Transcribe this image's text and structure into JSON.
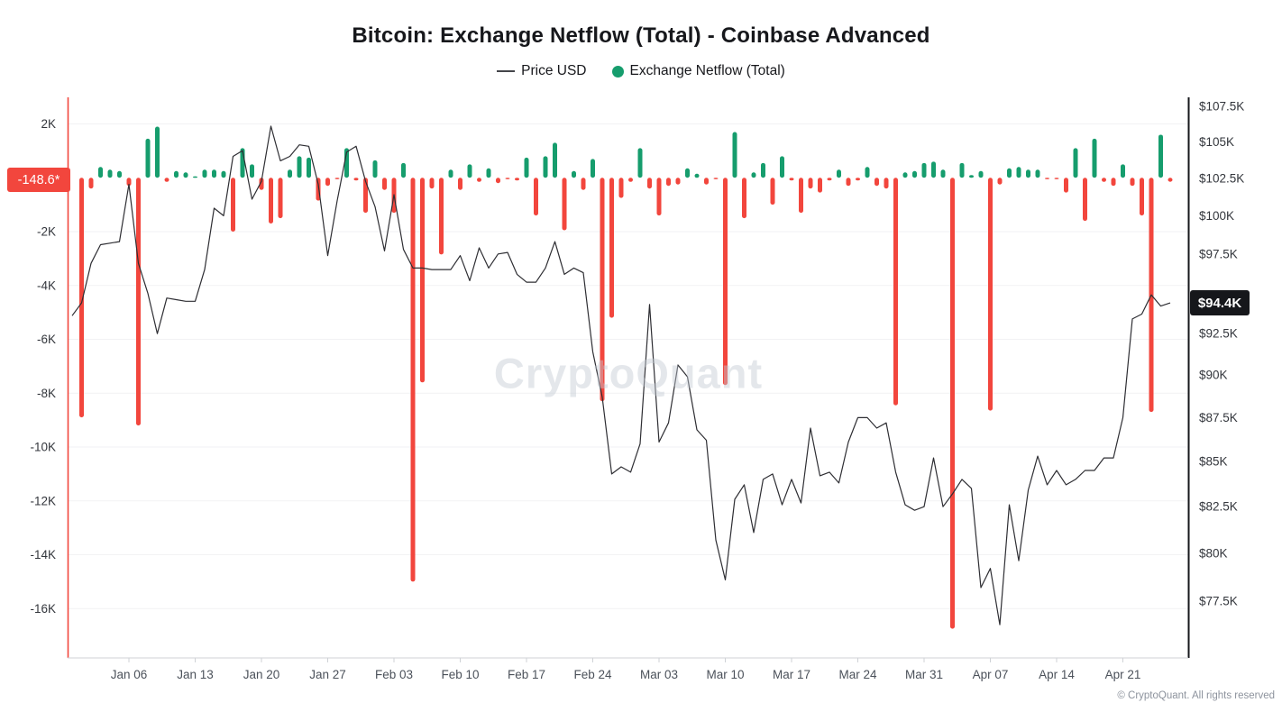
{
  "title": "Bitcoin: Exchange Netflow (Total) - Coinbase Advanced",
  "legend": {
    "price_label": "Price USD",
    "netflow_label": "Exchange Netflow (Total)"
  },
  "watermark": "CryptoQuant",
  "copyright": "© CryptoQuant. All rights reserved",
  "badges": {
    "netflow_last": "-148.6*",
    "price_last": "$94.4K"
  },
  "colors": {
    "positive_bar": "#169d6d",
    "negative_bar": "#f2463d",
    "price_line": "#2e2e33",
    "left_axis_spine": "#f2463d",
    "right_axis_spine": "#16171b",
    "netflow_badge_bg": "#f2463d",
    "price_badge_bg": "#16171b",
    "grid": "#f2f2f4",
    "x_axis_line": "#cfd2d6",
    "y_tick_text": "#33363c",
    "x_tick_text": "#4b515a"
  },
  "chart_data": {
    "type": "bar+line",
    "x": [
      "Dec 31",
      "Jan 01",
      "Jan 02",
      "Jan 03",
      "Jan 04",
      "Jan 05",
      "Jan 06",
      "Jan 07",
      "Jan 08",
      "Jan 09",
      "Jan 10",
      "Jan 11",
      "Jan 12",
      "Jan 13",
      "Jan 14",
      "Jan 15",
      "Jan 16",
      "Jan 17",
      "Jan 18",
      "Jan 19",
      "Jan 20",
      "Jan 21",
      "Jan 22",
      "Jan 23",
      "Jan 24",
      "Jan 25",
      "Jan 26",
      "Jan 27",
      "Jan 28",
      "Jan 29",
      "Jan 30",
      "Jan 31",
      "Feb 01",
      "Feb 02",
      "Feb 03",
      "Feb 04",
      "Feb 05",
      "Feb 06",
      "Feb 07",
      "Feb 08",
      "Feb 09",
      "Feb 10",
      "Feb 11",
      "Feb 12",
      "Feb 13",
      "Feb 14",
      "Feb 15",
      "Feb 16",
      "Feb 17",
      "Feb 18",
      "Feb 19",
      "Feb 20",
      "Feb 21",
      "Feb 22",
      "Feb 23",
      "Feb 24",
      "Feb 25",
      "Feb 26",
      "Feb 27",
      "Feb 28",
      "Mar 01",
      "Mar 02",
      "Mar 03",
      "Mar 04",
      "Mar 05",
      "Mar 06",
      "Mar 07",
      "Mar 08",
      "Mar 09",
      "Mar 10",
      "Mar 11",
      "Mar 12",
      "Mar 13",
      "Mar 14",
      "Mar 15",
      "Mar 16",
      "Mar 17",
      "Mar 18",
      "Mar 19",
      "Mar 20",
      "Mar 21",
      "Mar 22",
      "Mar 23",
      "Mar 24",
      "Mar 25",
      "Mar 26",
      "Mar 27",
      "Mar 28",
      "Mar 29",
      "Mar 30",
      "Mar 31",
      "Apr 01",
      "Apr 02",
      "Apr 03",
      "Apr 04",
      "Apr 05",
      "Apr 06",
      "Apr 07",
      "Apr 08",
      "Apr 09",
      "Apr 10",
      "Apr 11",
      "Apr 12",
      "Apr 13",
      "Apr 14",
      "Apr 15",
      "Apr 16",
      "Apr 17",
      "Apr 18",
      "Apr 19",
      "Apr 20",
      "Apr 21",
      "Apr 22",
      "Apr 23",
      "Apr 24",
      "Apr 25",
      "Apr 26"
    ],
    "series": [
      {
        "name": "Exchange Netflow (Total)",
        "type": "bar",
        "axis": "left",
        "unit": "BTC",
        "values": [
          null,
          -8900,
          -400,
          400,
          300,
          250,
          -300,
          -9200,
          1450,
          1900,
          -150,
          250,
          200,
          50,
          300,
          300,
          250,
          -2000,
          1100,
          500,
          -450,
          -1700,
          -1500,
          300,
          800,
          750,
          -850,
          -300,
          -50,
          1100,
          -100,
          -1300,
          650,
          -450,
          -1300,
          550,
          -15000,
          -7600,
          -400,
          -2850,
          300,
          -450,
          500,
          -150,
          350,
          -200,
          -50,
          -100,
          750,
          -1400,
          800,
          1300,
          -1950,
          250,
          -450,
          700,
          -8300,
          -5200,
          -750,
          -150,
          1100,
          -400,
          -1400,
          -300,
          -250,
          350,
          150,
          -250,
          -50,
          -7700,
          1700,
          -1500,
          200,
          550,
          -1000,
          800,
          -100,
          -1300,
          -400,
          -550,
          -100,
          300,
          -300,
          -100,
          400,
          -300,
          -400,
          -8450,
          200,
          250,
          550,
          600,
          300,
          -16750,
          550,
          100,
          250,
          -8650,
          -250,
          350,
          400,
          300,
          300,
          -50,
          -50,
          -550,
          1100,
          -1600,
          1450,
          -150,
          -300,
          500,
          -300,
          -1400,
          -8700,
          1600,
          -148.6
        ]
      },
      {
        "name": "Price USD",
        "type": "line",
        "axis": "right",
        "unit": "thousand USD",
        "values": [
          93.6,
          94.4,
          96.9,
          98.1,
          98.2,
          98.3,
          102.1,
          96.9,
          95.0,
          92.5,
          94.7,
          94.6,
          94.5,
          94.5,
          96.5,
          100.5,
          100.0,
          104.0,
          104.4,
          101.1,
          102.3,
          106.1,
          103.7,
          104.0,
          104.8,
          104.7,
          102.1,
          97.4,
          101.0,
          104.3,
          104.7,
          102.3,
          100.6,
          97.7,
          101.4,
          97.8,
          96.6,
          96.6,
          96.5,
          96.5,
          96.5,
          97.4,
          95.8,
          97.9,
          96.6,
          97.5,
          97.6,
          96.2,
          95.7,
          95.7,
          96.6,
          98.3,
          96.2,
          96.6,
          96.3,
          91.4,
          88.7,
          84.3,
          84.7,
          84.4,
          86.0,
          94.3,
          86.1,
          87.2,
          90.6,
          89.9,
          86.8,
          86.2,
          80.7,
          78.6,
          82.9,
          83.7,
          81.1,
          84.0,
          84.3,
          82.6,
          84.0,
          82.7,
          86.9,
          84.2,
          84.4,
          83.8,
          86.1,
          87.5,
          87.5,
          86.9,
          87.2,
          84.4,
          82.6,
          82.3,
          82.5,
          85.2,
          82.5,
          83.2,
          84.0,
          83.5,
          78.2,
          79.2,
          76.3,
          82.6,
          79.6,
          83.4,
          85.3,
          83.7,
          84.5,
          83.7,
          84.0,
          84.5,
          84.5,
          85.2,
          85.2,
          87.5,
          93.4,
          93.7,
          94.9,
          94.2,
          94.4
        ]
      }
    ],
    "left_axis": {
      "title": "Exchange Netflow (Total)",
      "ticks": [
        {
          "label": "2K",
          "value": 2000
        },
        {
          "label": "-2K",
          "value": -2000
        },
        {
          "label": "-4K",
          "value": -4000
        },
        {
          "label": "-6K",
          "value": -6000
        },
        {
          "label": "-8K",
          "value": -8000
        },
        {
          "label": "-10K",
          "value": -10000
        },
        {
          "label": "-12K",
          "value": -12000
        },
        {
          "label": "-14K",
          "value": -14000
        },
        {
          "label": "-16K",
          "value": -16000
        }
      ]
    },
    "right_axis": {
      "title": "Price USD",
      "scale": "log",
      "ticks": [
        {
          "label": "$107.5K",
          "value": 107.5
        },
        {
          "label": "$105K",
          "value": 105
        },
        {
          "label": "$102.5K",
          "value": 102.5
        },
        {
          "label": "$100K",
          "value": 100
        },
        {
          "label": "$97.5K",
          "value": 97.5
        },
        {
          "label": "$92.5K",
          "value": 92.5
        },
        {
          "label": "$90K",
          "value": 90
        },
        {
          "label": "$87.5K",
          "value": 87.5
        },
        {
          "label": "$85K",
          "value": 85
        },
        {
          "label": "$82.5K",
          "value": 82.5
        },
        {
          "label": "$80K",
          "value": 80
        },
        {
          "label": "$77.5K",
          "value": 77.5
        }
      ]
    },
    "x_ticks": [
      "Jan 06",
      "Jan 13",
      "Jan 20",
      "Jan 27",
      "Feb 03",
      "Feb 10",
      "Feb 17",
      "Feb 24",
      "Mar 03",
      "Mar 10",
      "Mar 17",
      "Mar 24",
      "Mar 31",
      "Apr 07",
      "Apr 14",
      "Apr 21"
    ],
    "last_values": {
      "netflow": -148.6,
      "price": 94.4
    },
    "grid": "horizontal",
    "legend_position": "top"
  }
}
